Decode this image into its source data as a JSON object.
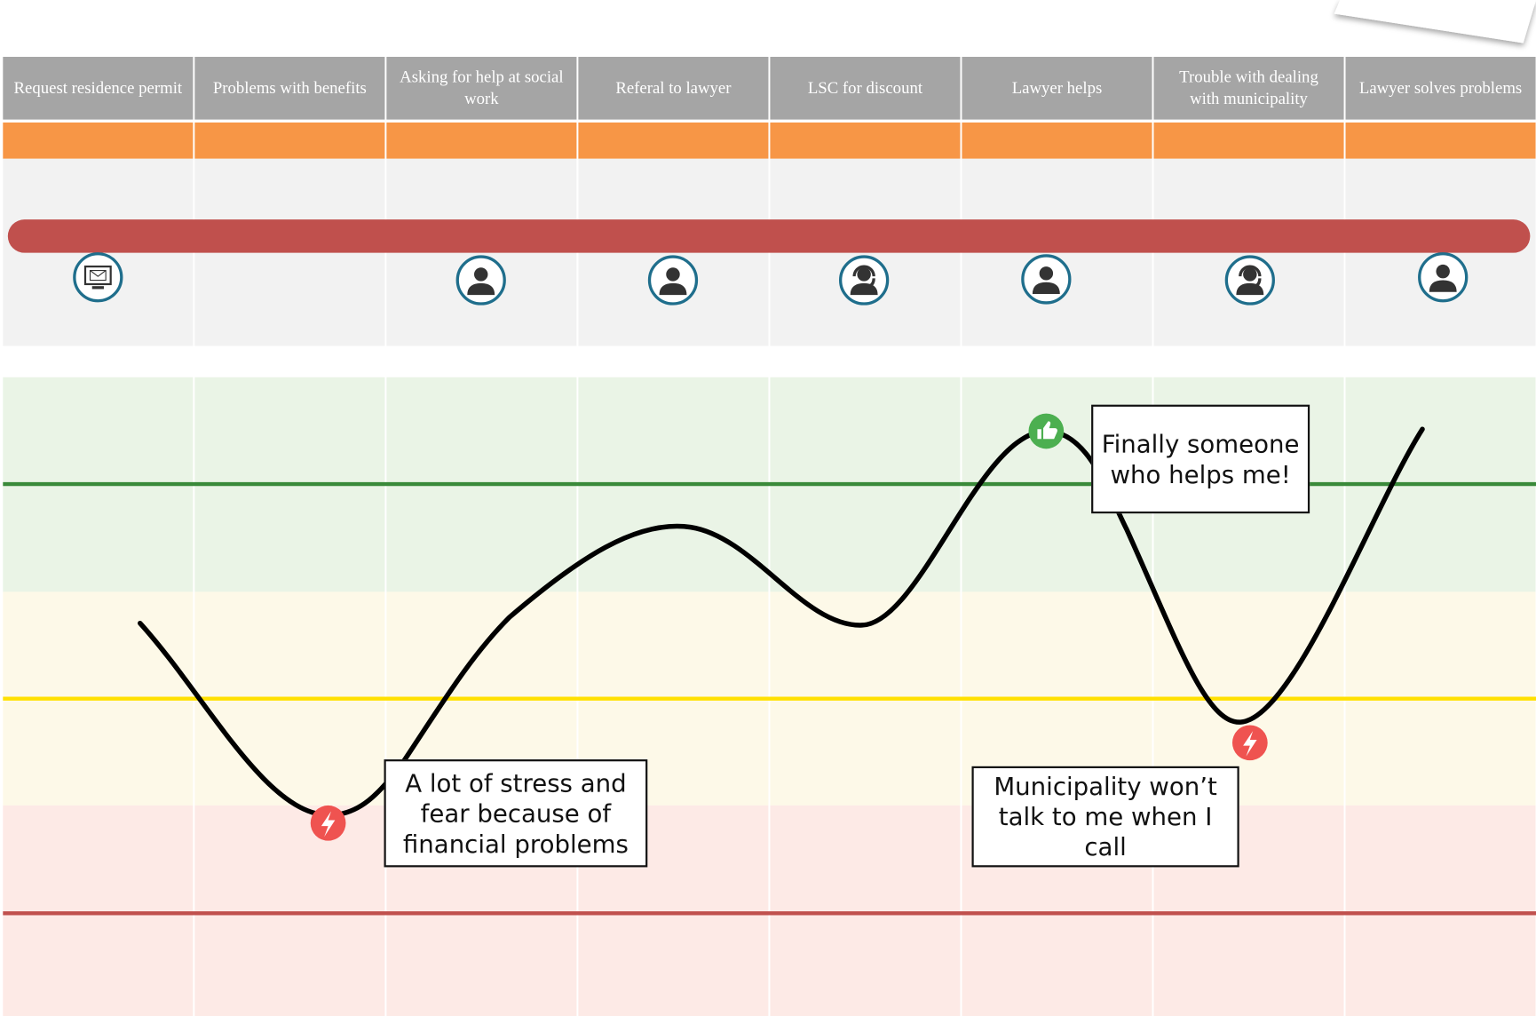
{
  "stages": [
    "Request residence permit",
    "Problems with benefits",
    "Asking for help at social work",
    "Referal to lawyer",
    "LSC for discount",
    "Lawyer helps",
    "Trouble with dealing with municipality",
    "Lawyer  solves problems"
  ],
  "annotations": [
    "A lot of stress and fear because of financial problems",
    "Finally someone who helps me!",
    "Municipality won’t talk to me when I call"
  ]
}
